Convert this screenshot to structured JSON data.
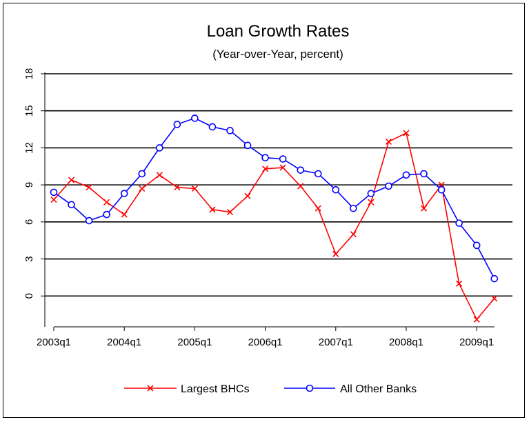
{
  "chart_data": {
    "type": "line",
    "title": "Loan Growth Rates",
    "subtitle": "(Year-over-Year, percent)",
    "xlabel": "",
    "ylabel": "",
    "ylim": [
      -2.5,
      18
    ],
    "y_ticks": [
      0,
      3,
      6,
      9,
      12,
      15,
      18
    ],
    "x_tick_labels": [
      "2003q1",
      "2004q1",
      "2005q1",
      "2006q1",
      "2007q1",
      "2008q1",
      "2009q1"
    ],
    "x": [
      "2003q1",
      "2003q2",
      "2003q3",
      "2003q4",
      "2004q1",
      "2004q2",
      "2004q3",
      "2004q4",
      "2005q1",
      "2005q2",
      "2005q3",
      "2005q4",
      "2006q1",
      "2006q2",
      "2006q3",
      "2006q4",
      "2007q1",
      "2007q2",
      "2007q3",
      "2007q4",
      "2008q1",
      "2008q2",
      "2008q3",
      "2008q4",
      "2009q1",
      "2009q2"
    ],
    "grid": "horizontal",
    "legend_position": "bottom",
    "series": [
      {
        "name": "Largest BHCs",
        "color": "#ff0000",
        "marker": "x",
        "values": [
          7.8,
          9.4,
          8.8,
          7.6,
          6.6,
          8.7,
          9.8,
          8.8,
          8.7,
          7.0,
          6.8,
          8.1,
          10.3,
          10.4,
          8.9,
          7.1,
          3.4,
          5.0,
          7.6,
          12.5,
          13.2,
          7.1,
          9.0,
          1.0,
          -1.9,
          -0.2
        ]
      },
      {
        "name": "All Other Banks",
        "color": "#0000ff",
        "marker": "circle",
        "values": [
          8.4,
          7.4,
          6.1,
          6.6,
          8.3,
          9.9,
          12.0,
          13.9,
          14.4,
          13.7,
          13.4,
          12.2,
          11.2,
          11.1,
          10.2,
          9.9,
          8.6,
          7.1,
          8.3,
          8.9,
          9.8,
          9.9,
          8.6,
          5.9,
          4.1,
          1.4
        ]
      }
    ]
  }
}
